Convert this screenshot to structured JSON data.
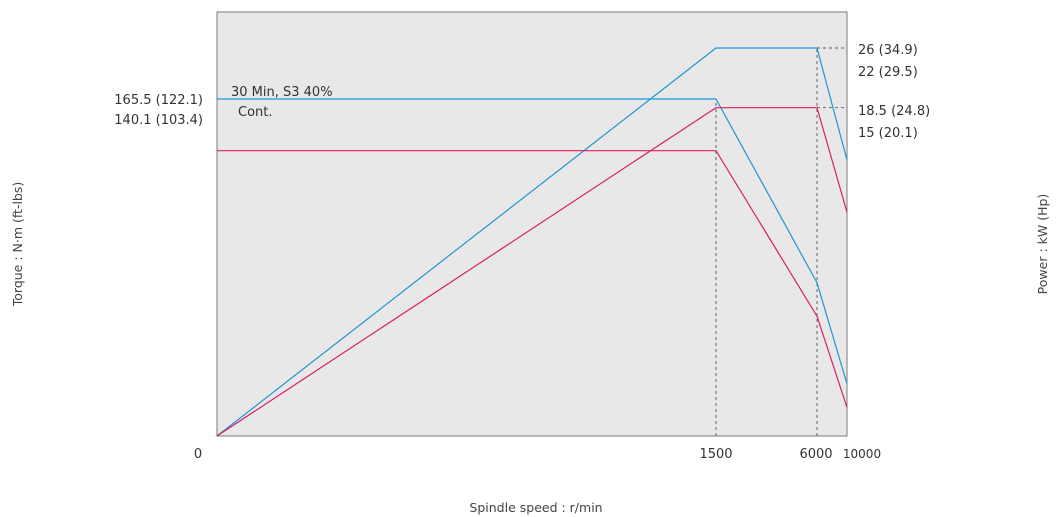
{
  "chart_data": {
    "type": "line",
    "title": "",
    "xlabel": "Spindle speed : r/min",
    "ylabel_left": "Torque : N·m (ft-lbs)",
    "ylabel_right": "Power : kW (Hp)",
    "x_ticks": [
      "0",
      "1500",
      "6000",
      "10000"
    ],
    "left_tick_labels": [
      "165.5 (122.1)",
      "140.1 (103.4)"
    ],
    "right_tick_labels": [
      "26 (34.9)",
      "22 (29.5)",
      "18.5 (24.8)",
      "15 (20.1)"
    ],
    "series": [
      {
        "name": "30 Min, S3 40%",
        "color": "#1f96d3",
        "torque": {
          "constant_value": 165.5,
          "x": [
            0,
            1500
          ],
          "then_falls_to_x": 10000
        },
        "power": [
          [
            0,
            0
          ],
          [
            1500,
            26
          ],
          [
            6000,
            26
          ],
          [
            10000,
            18.5
          ]
        ]
      },
      {
        "name": "Cont.",
        "color": "#dc1e64",
        "torque": {
          "constant_value": 140.1,
          "x": [
            0,
            1500
          ],
          "then_falls_to_x": 10000
        },
        "power": [
          [
            0,
            0
          ],
          [
            1500,
            22
          ],
          [
            6000,
            22
          ],
          [
            10000,
            15
          ]
        ]
      }
    ],
    "background_color": "#e8e8e8",
    "grid": false
  }
}
